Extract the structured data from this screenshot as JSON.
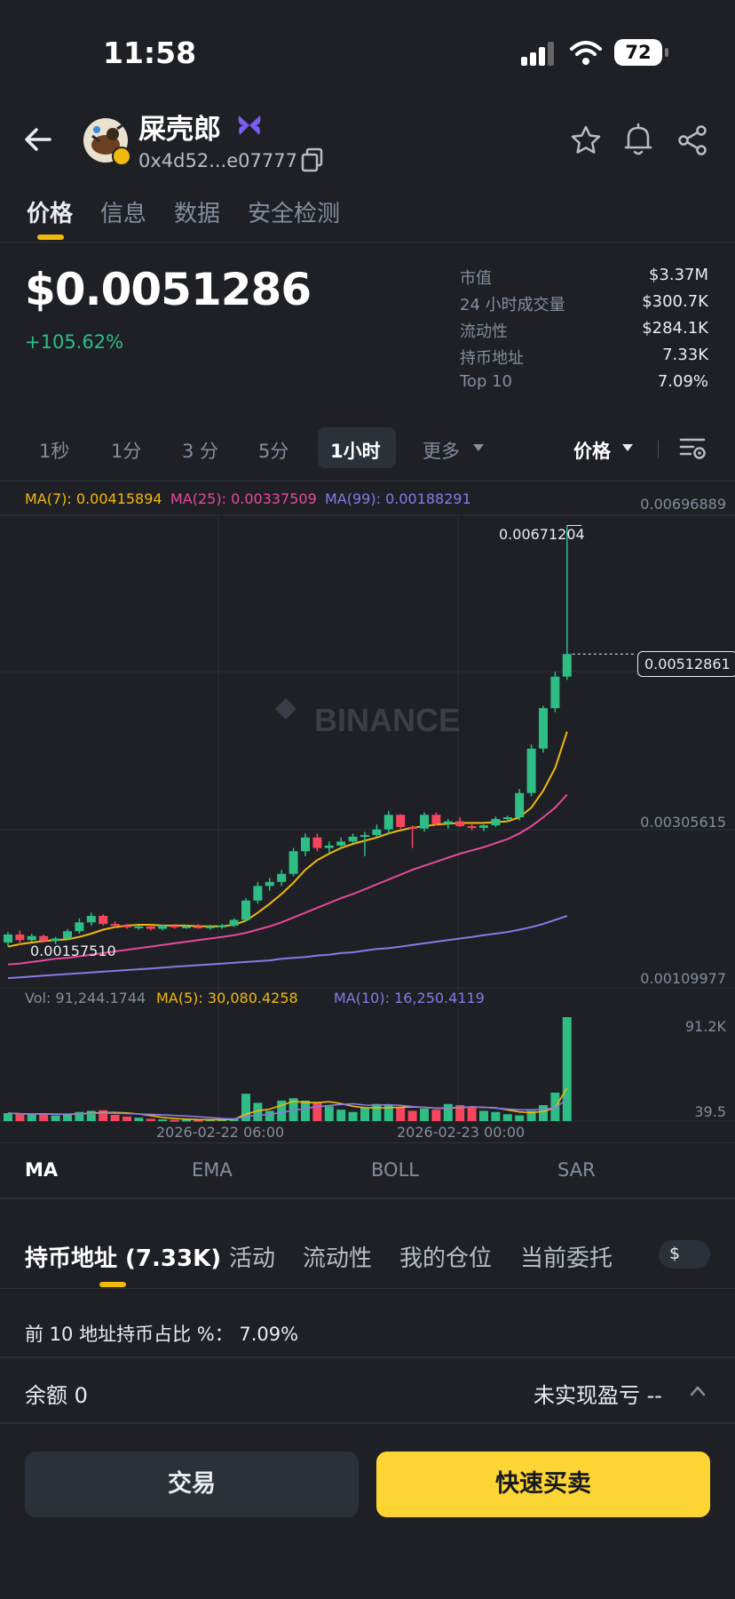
{
  "status_bar": {
    "time": "11:58",
    "battery": "72"
  },
  "token": {
    "name": "屎壳郎",
    "address": "0x4d52...e07777"
  },
  "tabs": [
    "价格",
    "信息",
    "数据",
    "安全检测"
  ],
  "price": {
    "value": "$0.0051286",
    "change": "+105.62%"
  },
  "stats": [
    {
      "label": "市值",
      "value": "$3.37M"
    },
    {
      "label": "24 小时成交量",
      "value": "$300.7K"
    },
    {
      "label": "流动性",
      "value": "$284.1K"
    },
    {
      "label": "持币地址",
      "value": "7.33K"
    },
    {
      "label": "Top 10",
      "value": "7.09%"
    }
  ],
  "timeframes": [
    "1秒",
    "1分",
    "3 分",
    "5分",
    "1小时",
    "更多"
  ],
  "price_selector": "价格",
  "ma_legend": {
    "ma7": "MA(7): 0.00415894",
    "ma25": "MA(25): 0.00337509",
    "ma99": "MA(99): 0.00188291"
  },
  "watermark": "BINANCE",
  "price_axis": {
    "top": "0.00696889",
    "mid": "0.00305615",
    "bottom": "0.00109977",
    "high_label": "0.00671204",
    "current_label": "0.00512861",
    "low_label": "0.00157510"
  },
  "volume_legend": {
    "vol": "Vol: 91,244.1744",
    "ma5": "MA(5): 30,080.4258",
    "ma10": "MA(10): 16,250.4119"
  },
  "volume_axis": {
    "top": "91.2K",
    "bottom": "39.5"
  },
  "time_axis": [
    "2026-02-22 06:00",
    "2026-02-23 00:00"
  ],
  "indicators": [
    "MA",
    "EMA",
    "BOLL",
    "SAR"
  ],
  "holder_tabs": [
    "持币地址 (7.33K)",
    "活动",
    "流动性",
    "我的仓位",
    "当前委托"
  ],
  "currency_toggle": "$",
  "top10_line": "前 10 地址持币占比 %： 7.09%",
  "balance": {
    "label": "余额 0",
    "pnl": "未实现盈亏 --"
  },
  "buttons": {
    "trade": "交易",
    "quick": "快速买卖"
  },
  "colors": {
    "up": "#2ebd85",
    "down": "#f6465d",
    "ma7": "#f0b90b",
    "ma25": "#e84a9a",
    "ma99": "#8b79e6",
    "accent": "#fcd535"
  },
  "chart_data": {
    "type": "candlestick",
    "interval": "1小时",
    "time_labels": [
      "2026-02-22 06:00",
      "2026-02-23 00:00"
    ],
    "ylim": [
      0.00109977,
      0.00696889
    ],
    "ohlc": [
      [
        0.00155,
        0.00168,
        0.0015,
        0.00165
      ],
      [
        0.00165,
        0.0017,
        0.00152,
        0.00158
      ],
      [
        0.00158,
        0.00166,
        0.00156,
        0.00163
      ],
      [
        0.00163,
        0.00165,
        0.00155,
        0.00157
      ],
      [
        0.00157,
        0.00162,
        0.00153,
        0.0016
      ],
      [
        0.0016,
        0.00172,
        0.00158,
        0.00169
      ],
      [
        0.00169,
        0.00185,
        0.00166,
        0.0018
      ],
      [
        0.0018,
        0.00192,
        0.00176,
        0.00188
      ],
      [
        0.00188,
        0.0019,
        0.00176,
        0.00178
      ],
      [
        0.00178,
        0.00181,
        0.00174,
        0.00176
      ],
      [
        0.00176,
        0.00178,
        0.00172,
        0.00174
      ],
      [
        0.00174,
        0.00176,
        0.00171,
        0.00175
      ],
      [
        0.00175,
        0.00177,
        0.0017,
        0.00172
      ],
      [
        0.00172,
        0.00177,
        0.0017,
        0.00176
      ],
      [
        0.00176,
        0.00178,
        0.00172,
        0.00174
      ],
      [
        0.00174,
        0.00177,
        0.00172,
        0.00175
      ],
      [
        0.00175,
        0.00178,
        0.00172,
        0.00174
      ],
      [
        0.00174,
        0.00177,
        0.00171,
        0.00175
      ],
      [
        0.00175,
        0.00178,
        0.00172,
        0.00176
      ],
      [
        0.00176,
        0.00185,
        0.00174,
        0.00183
      ],
      [
        0.00183,
        0.0021,
        0.00181,
        0.00207
      ],
      [
        0.00207,
        0.0023,
        0.00203,
        0.00225
      ],
      [
        0.00225,
        0.00235,
        0.00219,
        0.0023
      ],
      [
        0.0023,
        0.00245,
        0.00225,
        0.0024
      ],
      [
        0.0024,
        0.00272,
        0.00237,
        0.00268
      ],
      [
        0.00268,
        0.0029,
        0.00262,
        0.00285
      ],
      [
        0.00285,
        0.0029,
        0.00268,
        0.00272
      ],
      [
        0.00272,
        0.0028,
        0.00265,
        0.00275
      ],
      [
        0.00275,
        0.00285,
        0.0027,
        0.0028
      ],
      [
        0.0028,
        0.0029,
        0.00278,
        0.00286
      ],
      [
        0.00286,
        0.00292,
        0.00262,
        0.00288
      ],
      [
        0.00288,
        0.00301,
        0.00286,
        0.00295
      ],
      [
        0.00295,
        0.00318,
        0.0029,
        0.00313
      ],
      [
        0.00313,
        0.00314,
        0.00296,
        0.00298
      ],
      [
        0.00298,
        0.003,
        0.00272,
        0.00296
      ],
      [
        0.00296,
        0.00316,
        0.00292,
        0.00313
      ],
      [
        0.00313,
        0.00316,
        0.003,
        0.00302
      ],
      [
        0.00302,
        0.00308,
        0.00296,
        0.00305
      ],
      [
        0.00305,
        0.0031,
        0.00298,
        0.00299
      ],
      [
        0.00299,
        0.00303,
        0.00294,
        0.00297
      ],
      [
        0.00297,
        0.00301,
        0.00293,
        0.003
      ],
      [
        0.003,
        0.00311,
        0.00298,
        0.00308
      ],
      [
        0.00308,
        0.00312,
        0.00304,
        0.0031
      ],
      [
        0.0031,
        0.00345,
        0.00306,
        0.0034
      ],
      [
        0.0034,
        0.004,
        0.00336,
        0.00395
      ],
      [
        0.00395,
        0.00448,
        0.0039,
        0.00445
      ],
      [
        0.00445,
        0.0049,
        0.0044,
        0.00484
      ],
      [
        0.00484,
        0.00671,
        0.0048,
        0.00512
      ]
    ],
    "volume": [
      7000,
      6000,
      5500,
      7000,
      5000,
      6000,
      8000,
      9000,
      9500,
      5500,
      4000,
      3000,
      2000,
      1500,
      1000,
      1200,
      1000,
      1500,
      1600,
      2000,
      24000,
      16000,
      9000,
      18000,
      20000,
      18000,
      16000,
      13000,
      10000,
      8000,
      12000,
      15000,
      14000,
      12000,
      9000,
      11000,
      10000,
      15000,
      14000,
      12000,
      9000,
      8000,
      6000,
      5000,
      9000,
      14000,
      25000,
      91244.1744
    ],
    "ma7": [
      0.0015,
      0.00153,
      0.00155,
      0.00157,
      0.00158,
      0.00159,
      0.00162,
      0.00166,
      0.00171,
      0.00174,
      0.00176,
      0.00177,
      0.00177,
      0.00176,
      0.00176,
      0.00176,
      0.00175,
      0.00175,
      0.00175,
      0.00177,
      0.00182,
      0.00192,
      0.00203,
      0.00215,
      0.00229,
      0.00245,
      0.00257,
      0.00265,
      0.00272,
      0.00277,
      0.00281,
      0.00285,
      0.0029,
      0.00294,
      0.00297,
      0.00299,
      0.00301,
      0.00302,
      0.00303,
      0.00303,
      0.00303,
      0.00304,
      0.00305,
      0.0031,
      0.00322,
      0.00343,
      0.00371,
      0.00416
    ],
    "ma25": [
      0.00128,
      0.00129,
      0.00131,
      0.00133,
      0.00135,
      0.00136,
      0.00138,
      0.0014,
      0.00142,
      0.00144,
      0.00146,
      0.00148,
      0.0015,
      0.00152,
      0.00154,
      0.00156,
      0.00158,
      0.0016,
      0.00162,
      0.00164,
      0.00167,
      0.00171,
      0.00175,
      0.0018,
      0.00186,
      0.00192,
      0.00198,
      0.00204,
      0.0021,
      0.00215,
      0.00221,
      0.00227,
      0.00233,
      0.00239,
      0.00245,
      0.0025,
      0.00255,
      0.0026,
      0.00265,
      0.00269,
      0.00273,
      0.00278,
      0.00283,
      0.0029,
      0.00299,
      0.0031,
      0.00322,
      0.00338
    ],
    "ma99": [
      0.00111,
      0.00112,
      0.00113,
      0.00114,
      0.00115,
      0.00116,
      0.00117,
      0.00118,
      0.00119,
      0.0012,
      0.00121,
      0.00122,
      0.00123,
      0.00124,
      0.00125,
      0.00126,
      0.00127,
      0.00128,
      0.00129,
      0.0013,
      0.00131,
      0.00132,
      0.00133,
      0.00135,
      0.00136,
      0.00137,
      0.00139,
      0.0014,
      0.00142,
      0.00143,
      0.00145,
      0.00147,
      0.00148,
      0.0015,
      0.00152,
      0.00154,
      0.00156,
      0.00158,
      0.0016,
      0.00162,
      0.00164,
      0.00166,
      0.00168,
      0.00171,
      0.00174,
      0.00178,
      0.00183,
      0.00188
    ]
  }
}
